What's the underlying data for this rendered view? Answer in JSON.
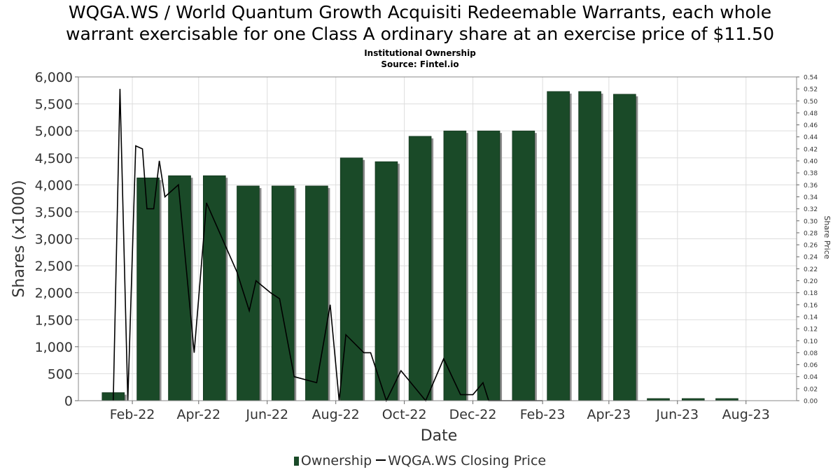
{
  "title_lines": [
    "WQGA.WS / World Quantum Growth Acquisiti Redeemable Warrants, each whole",
    "warrant exercisable for one Class A ordinary share at an exercise price of $11.50"
  ],
  "subtitle_lines": [
    "Institutional Ownership",
    "Source: Fintel.io"
  ],
  "legend": {
    "ownership_label": "Ownership",
    "price_label": "WQGA.WS Closing Price"
  },
  "colors": {
    "bar": "#1a4a28",
    "bar_shadow": "#8c8c8c",
    "price_line": "#000000",
    "grid": "#dddddd"
  },
  "chart_data": {
    "type": "bar",
    "title": "WQGA.WS / World Quantum Growth Acquisiti Redeemable Warrants, each whole warrant exercisable for one Class A ordinary share at an exercise price of $11.50",
    "subtitle": "Institutional Ownership",
    "xlabel": "Date",
    "ylabel": "Shares (x1000)",
    "y2label": "Share Price",
    "ylim": [
      0,
      6000
    ],
    "y2lim": [
      0,
      0.54
    ],
    "xlim": [
      "2021-12-15",
      "2023-09-15"
    ],
    "grid": true,
    "legend_position": "bottom",
    "y_ticks": [
      {
        "v": 0,
        "label": "0"
      },
      {
        "v": 500,
        "label": "500"
      },
      {
        "v": 1000,
        "label": "1,000"
      },
      {
        "v": 1500,
        "label": "1,500"
      },
      {
        "v": 2000,
        "label": "2,000"
      },
      {
        "v": 2500,
        "label": "2,500"
      },
      {
        "v": 3000,
        "label": "3,000"
      },
      {
        "v": 3500,
        "label": "3,500"
      },
      {
        "v": 4000,
        "label": "4,000"
      },
      {
        "v": 4500,
        "label": "4,500"
      },
      {
        "v": 5000,
        "label": "5,000"
      },
      {
        "v": 5500,
        "label": "5,500"
      },
      {
        "v": 6000,
        "label": "6,000"
      }
    ],
    "y2_ticks": [
      "0.00",
      "0.02",
      "0.04",
      "0.06",
      "0.08",
      "0.10",
      "0.12",
      "0.14",
      "0.16",
      "0.18",
      "0.20",
      "0.22",
      "0.24",
      "0.26",
      "0.28",
      "0.30",
      "0.32",
      "0.34",
      "0.36",
      "0.38",
      "0.40",
      "0.42",
      "0.44",
      "0.46",
      "0.48",
      "0.50",
      "0.52",
      "0.54"
    ],
    "x_ticks": [
      {
        "date": "2022-02-01",
        "label": "Feb-22"
      },
      {
        "date": "2022-04-01",
        "label": "Apr-22"
      },
      {
        "date": "2022-06-01",
        "label": "Jun-22"
      },
      {
        "date": "2022-08-01",
        "label": "Aug-22"
      },
      {
        "date": "2022-10-01",
        "label": "Oct-22"
      },
      {
        "date": "2022-12-01",
        "label": "Dec-22"
      },
      {
        "date": "2023-02-01",
        "label": "Feb-23"
      },
      {
        "date": "2023-04-01",
        "label": "Apr-23"
      },
      {
        "date": "2023-06-01",
        "label": "Jun-23"
      },
      {
        "date": "2023-08-01",
        "label": "Aug-23"
      }
    ],
    "series": [
      {
        "name": "Ownership",
        "type": "bar",
        "axis": "left",
        "points": [
          {
            "date": "2022-01-15",
            "value": 150
          },
          {
            "date": "2022-02-15",
            "value": 4130
          },
          {
            "date": "2022-03-15",
            "value": 4170
          },
          {
            "date": "2022-04-15",
            "value": 4170
          },
          {
            "date": "2022-05-15",
            "value": 3980
          },
          {
            "date": "2022-06-15",
            "value": 3980
          },
          {
            "date": "2022-07-15",
            "value": 3980
          },
          {
            "date": "2022-08-15",
            "value": 4500
          },
          {
            "date": "2022-09-15",
            "value": 4430
          },
          {
            "date": "2022-10-15",
            "value": 4900
          },
          {
            "date": "2022-11-15",
            "value": 5000
          },
          {
            "date": "2022-12-15",
            "value": 5000
          },
          {
            "date": "2023-01-15",
            "value": 5000
          },
          {
            "date": "2023-02-15",
            "value": 5730
          },
          {
            "date": "2023-03-15",
            "value": 5730
          },
          {
            "date": "2023-04-15",
            "value": 5680
          },
          {
            "date": "2023-05-15",
            "value": 40
          },
          {
            "date": "2023-06-15",
            "value": 40
          },
          {
            "date": "2023-07-15",
            "value": 40
          }
        ]
      },
      {
        "name": "WQGA.WS Closing Price",
        "type": "line",
        "axis": "right",
        "points": [
          {
            "date": "2022-01-15",
            "value": 0.0
          },
          {
            "date": "2022-01-21",
            "value": 0.52
          },
          {
            "date": "2022-01-28",
            "value": 0.0
          },
          {
            "date": "2022-02-04",
            "value": 0.425
          },
          {
            "date": "2022-02-10",
            "value": 0.42
          },
          {
            "date": "2022-02-14",
            "value": 0.32
          },
          {
            "date": "2022-02-20",
            "value": 0.32
          },
          {
            "date": "2022-02-25",
            "value": 0.4
          },
          {
            "date": "2022-03-02",
            "value": 0.34
          },
          {
            "date": "2022-03-14",
            "value": 0.36
          },
          {
            "date": "2022-03-28",
            "value": 0.08
          },
          {
            "date": "2022-04-08",
            "value": 0.33
          },
          {
            "date": "2022-04-15",
            "value": 0.3
          },
          {
            "date": "2022-05-05",
            "value": 0.215
          },
          {
            "date": "2022-05-16",
            "value": 0.15
          },
          {
            "date": "2022-05-22",
            "value": 0.2
          },
          {
            "date": "2022-06-04",
            "value": 0.18
          },
          {
            "date": "2022-06-12",
            "value": 0.17
          },
          {
            "date": "2022-06-25",
            "value": 0.04
          },
          {
            "date": "2022-07-15",
            "value": 0.03
          },
          {
            "date": "2022-07-27",
            "value": 0.16
          },
          {
            "date": "2022-08-04",
            "value": 0.0
          },
          {
            "date": "2022-08-10",
            "value": 0.11
          },
          {
            "date": "2022-08-26",
            "value": 0.08
          },
          {
            "date": "2022-09-01",
            "value": 0.08
          },
          {
            "date": "2022-09-15",
            "value": 0.0
          },
          {
            "date": "2022-09-28",
            "value": 0.05
          },
          {
            "date": "2022-10-20",
            "value": 0.0
          },
          {
            "date": "2022-11-05",
            "value": 0.07
          },
          {
            "date": "2022-11-20",
            "value": 0.01
          },
          {
            "date": "2022-12-01",
            "value": 0.01
          },
          {
            "date": "2022-12-10",
            "value": 0.03
          },
          {
            "date": "2022-12-15",
            "value": 0.0
          },
          {
            "date": "2023-01-15",
            "value": 0.0
          },
          {
            "date": "2023-02-01",
            "value": 0.0
          }
        ]
      }
    ]
  }
}
